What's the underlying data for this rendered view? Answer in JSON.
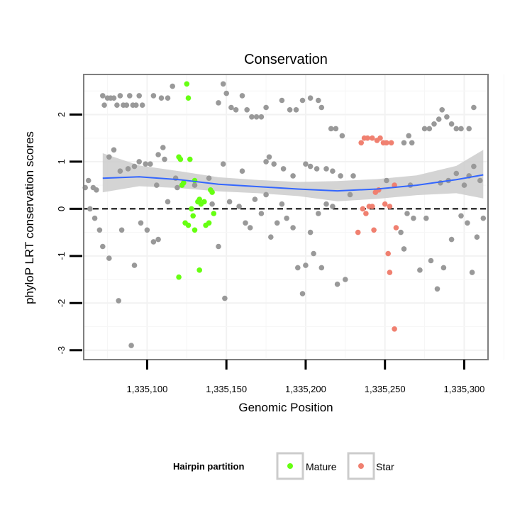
{
  "chart_data": {
    "type": "scatter",
    "title": "Conservation",
    "xlabel": "Genomic Position",
    "ylabel": "phyloP LRT conservation scores",
    "xlim": [
      1335060,
      1335315
    ],
    "ylim": [
      -3.2,
      2.85
    ],
    "x_ticks": [
      1335100,
      1335150,
      1335200,
      1335250,
      1335300
    ],
    "x_tick_labels": [
      "1,335,100",
      "1,335,150",
      "1,335,200",
      "1,335,250",
      "1,335,300"
    ],
    "y_ticks": [
      -3,
      -2,
      -1,
      0,
      1,
      2
    ],
    "y_tick_labels": [
      "-3",
      "-2",
      "-1",
      "0",
      "1",
      "2"
    ],
    "reference_line": {
      "y": 0,
      "style": "dashed"
    },
    "colors": {
      "Other": "#999999",
      "Mature": "#66ff11",
      "Star": "#f08070",
      "smooth": "#3366ff",
      "band": "#cccccc"
    },
    "legend": {
      "title": "Hairpin partition",
      "position": "bottom",
      "entries": [
        {
          "label": "Mature",
          "color": "#66ff11"
        },
        {
          "label": "Star",
          "color": "#f08070"
        }
      ]
    },
    "smooth": {
      "x": [
        1335072,
        1335095,
        1335120,
        1335145,
        1335170,
        1335195,
        1335220,
        1335245,
        1335270,
        1335295,
        1335312
      ],
      "y": [
        0.65,
        0.68,
        0.62,
        0.52,
        0.47,
        0.42,
        0.38,
        0.42,
        0.5,
        0.62,
        0.72
      ],
      "lower": [
        0.35,
        0.48,
        0.44,
        0.37,
        0.33,
        0.27,
        0.16,
        0.21,
        0.29,
        0.33,
        0.22
      ],
      "upper": [
        1.18,
        0.92,
        0.8,
        0.67,
        0.61,
        0.57,
        0.59,
        0.63,
        0.71,
        0.91,
        1.25
      ]
    },
    "series": [
      {
        "name": "Other",
        "points": [
          [
            1335072,
            2.4
          ],
          [
            1335073,
            2.2
          ],
          [
            1335075,
            2.35
          ],
          [
            1335077,
            2.35
          ],
          [
            1335079,
            2.35
          ],
          [
            1335081,
            2.2
          ],
          [
            1335083,
            2.4
          ],
          [
            1335085,
            2.2
          ],
          [
            1335087,
            2.2
          ],
          [
            1335089,
            2.4
          ],
          [
            1335091,
            2.2
          ],
          [
            1335093,
            2.2
          ],
          [
            1335095,
            2.4
          ],
          [
            1335097,
            2.2
          ],
          [
            1335104,
            2.4
          ],
          [
            1335109,
            2.35
          ],
          [
            1335113,
            2.35
          ],
          [
            1335116,
            2.6
          ],
          [
            1335145,
            2.25
          ],
          [
            1335148,
            2.65
          ],
          [
            1335150,
            2.45
          ],
          [
            1335153,
            2.15
          ],
          [
            1335156,
            2.1
          ],
          [
            1335160,
            2.4
          ],
          [
            1335163,
            2.1
          ],
          [
            1335166,
            1.95
          ],
          [
            1335169,
            1.95
          ],
          [
            1335172,
            1.95
          ],
          [
            1335175,
            2.15
          ],
          [
            1335185,
            2.3
          ],
          [
            1335190,
            2.1
          ],
          [
            1335194,
            2.1
          ],
          [
            1335198,
            2.3
          ],
          [
            1335203,
            2.35
          ],
          [
            1335208,
            2.3
          ],
          [
            1335210,
            2.15
          ],
          [
            1335216,
            1.7
          ],
          [
            1335219,
            1.7
          ],
          [
            1335223,
            1.55
          ],
          [
            1335265,
            1.55
          ],
          [
            1335267,
            1.4
          ],
          [
            1335275,
            1.7
          ],
          [
            1335278,
            1.7
          ],
          [
            1335281,
            1.8
          ],
          [
            1335284,
            1.9
          ],
          [
            1335286,
            2.1
          ],
          [
            1335289,
            1.95
          ],
          [
            1335292,
            1.8
          ],
          [
            1335295,
            1.7
          ],
          [
            1335298,
            1.7
          ],
          [
            1335303,
            1.7
          ],
          [
            1335306,
            2.15
          ],
          [
            1335262,
            1.4
          ],
          [
            1335063,
            0.6
          ],
          [
            1335066,
            0.45
          ],
          [
            1335068,
            0.4
          ],
          [
            1335076,
            1.1
          ],
          [
            1335079,
            1.25
          ],
          [
            1335083,
            0.8
          ],
          [
            1335088,
            0.85
          ],
          [
            1335092,
            0.9
          ],
          [
            1335095,
            1.0
          ],
          [
            1335099,
            0.95
          ],
          [
            1335102,
            0.95
          ],
          [
            1335107,
            1.15
          ],
          [
            1335110,
            1.3
          ],
          [
            1335111,
            1.05
          ],
          [
            1335106,
            0.5
          ],
          [
            1335118,
            0.65
          ],
          [
            1335130,
            0.5
          ],
          [
            1335139,
            0.65
          ],
          [
            1335148,
            0.95
          ],
          [
            1335160,
            0.8
          ],
          [
            1335175,
            1.0
          ],
          [
            1335177,
            1.1
          ],
          [
            1335180,
            0.95
          ],
          [
            1335186,
            0.85
          ],
          [
            1335192,
            0.7
          ],
          [
            1335200,
            0.95
          ],
          [
            1335203,
            0.9
          ],
          [
            1335207,
            0.85
          ],
          [
            1335213,
            0.85
          ],
          [
            1335217,
            0.8
          ],
          [
            1335222,
            0.7
          ],
          [
            1335230,
            0.7
          ],
          [
            1335251,
            0.6
          ],
          [
            1335266,
            0.5
          ],
          [
            1335285,
            0.55
          ],
          [
            1335290,
            0.6
          ],
          [
            1335295,
            0.75
          ],
          [
            1335300,
            0.5
          ],
          [
            1335303,
            0.7
          ],
          [
            1335306,
            0.9
          ],
          [
            1335310,
            0.6
          ],
          [
            1335061,
            0.45
          ],
          [
            1335064,
            0.0
          ],
          [
            1335067,
            -0.2
          ],
          [
            1335070,
            -0.45
          ],
          [
            1335072,
            -0.8
          ],
          [
            1335076,
            -1.05
          ],
          [
            1335082,
            -1.95
          ],
          [
            1335084,
            -0.45
          ],
          [
            1335090,
            -2.9
          ],
          [
            1335092,
            -1.2
          ],
          [
            1335096,
            -0.3
          ],
          [
            1335100,
            -0.45
          ],
          [
            1335104,
            -0.7
          ],
          [
            1335107,
            -0.65
          ],
          [
            1335113,
            0.15
          ],
          [
            1335119,
            0.45
          ],
          [
            1335141,
            0.1
          ],
          [
            1335145,
            -0.8
          ],
          [
            1335149,
            -1.9
          ],
          [
            1335152,
            0.15
          ],
          [
            1335158,
            0.05
          ],
          [
            1335162,
            -0.3
          ],
          [
            1335165,
            -0.4
          ],
          [
            1335168,
            0.2
          ],
          [
            1335172,
            -0.1
          ],
          [
            1335175,
            0.3
          ],
          [
            1335178,
            -0.6
          ],
          [
            1335182,
            -0.3
          ],
          [
            1335185,
            0.1
          ],
          [
            1335188,
            -0.2
          ],
          [
            1335192,
            -0.4
          ],
          [
            1335195,
            -1.25
          ],
          [
            1335198,
            -1.8
          ],
          [
            1335200,
            -1.2
          ],
          [
            1335203,
            -0.5
          ],
          [
            1335205,
            -0.95
          ],
          [
            1335208,
            -0.1
          ],
          [
            1335210,
            -1.25
          ],
          [
            1335213,
            0.1
          ],
          [
            1335217,
            0.05
          ],
          [
            1335220,
            -1.6
          ],
          [
            1335225,
            -1.5
          ],
          [
            1335228,
            0.3
          ],
          [
            1335260,
            -0.5
          ],
          [
            1335262,
            -0.85
          ],
          [
            1335264,
            -0.1
          ],
          [
            1335268,
            -0.2
          ],
          [
            1335272,
            -1.3
          ],
          [
            1335276,
            -0.2
          ],
          [
            1335279,
            -1.1
          ],
          [
            1335283,
            -1.7
          ],
          [
            1335287,
            -1.25
          ],
          [
            1335292,
            -0.65
          ],
          [
            1335298,
            -0.15
          ],
          [
            1335302,
            -0.3
          ],
          [
            1335305,
            -1.35
          ],
          [
            1335308,
            -0.6
          ],
          [
            1335312,
            -0.2
          ]
        ]
      },
      {
        "name": "Mature",
        "points": [
          [
            1335125,
            2.65
          ],
          [
            1335126,
            2.35
          ],
          [
            1335120,
            1.1
          ],
          [
            1335121,
            1.05
          ],
          [
            1335127,
            1.05
          ],
          [
            1335122,
            0.5
          ],
          [
            1335123,
            0.55
          ],
          [
            1335130,
            0.6
          ],
          [
            1335128,
            0.0
          ],
          [
            1335129,
            -0.15
          ],
          [
            1335132,
            0.15
          ],
          [
            1335133,
            0.2
          ],
          [
            1335134,
            0.1
          ],
          [
            1335136,
            0.15
          ],
          [
            1335137,
            -0.35
          ],
          [
            1335139,
            -0.3
          ],
          [
            1335140,
            0.4
          ],
          [
            1335141,
            0.35
          ],
          [
            1335142,
            -0.1
          ],
          [
            1335124,
            -0.3
          ],
          [
            1335126,
            -0.35
          ],
          [
            1335130,
            -0.45
          ],
          [
            1335120,
            -1.45
          ],
          [
            1335133,
            -1.3
          ]
        ]
      },
      {
        "name": "Star",
        "points": [
          [
            1335237,
            1.5
          ],
          [
            1335239,
            1.5
          ],
          [
            1335242,
            1.5
          ],
          [
            1335245,
            1.45
          ],
          [
            1335247,
            1.5
          ],
          [
            1335249,
            1.4
          ],
          [
            1335251,
            1.4
          ],
          [
            1335254,
            1.4
          ],
          [
            1335235,
            1.4
          ],
          [
            1335236,
            0.0
          ],
          [
            1335238,
            -0.1
          ],
          [
            1335240,
            0.05
          ],
          [
            1335242,
            0.05
          ],
          [
            1335244,
            0.35
          ],
          [
            1335246,
            0.4
          ],
          [
            1335250,
            0.1
          ],
          [
            1335253,
            0.05
          ],
          [
            1335256,
            0.5
          ],
          [
            1335233,
            -0.5
          ],
          [
            1335243,
            -0.45
          ],
          [
            1335252,
            -0.95
          ],
          [
            1335253,
            -1.35
          ],
          [
            1335257,
            -0.4
          ],
          [
            1335256,
            -2.55
          ]
        ]
      }
    ]
  }
}
